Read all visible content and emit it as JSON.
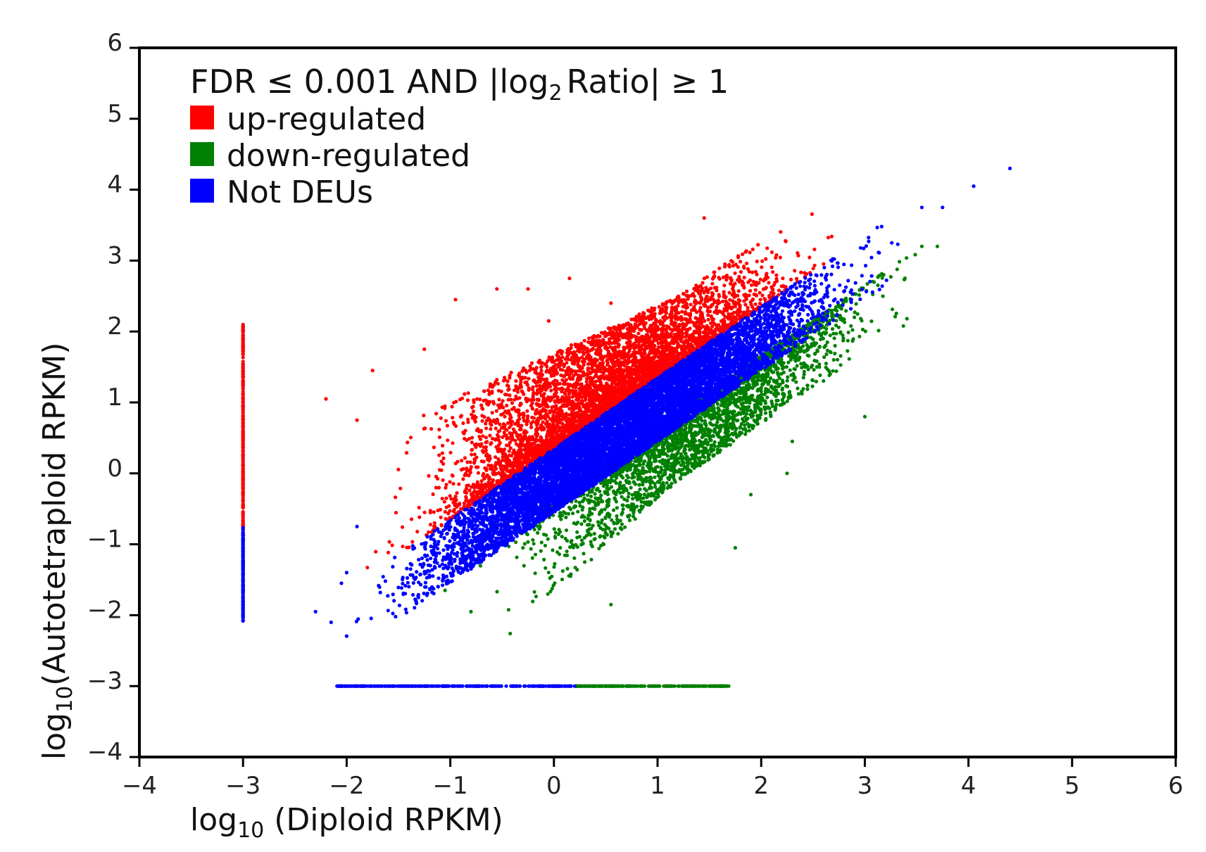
{
  "chart_data": {
    "type": "scatter",
    "title": "",
    "xlabel": {
      "prefix": "log",
      "sub": "10",
      "text": " (Diploid RPKM)"
    },
    "ylabel": {
      "prefix": "log",
      "sub": "10",
      "text": "(Autotetraploid RPKM)"
    },
    "xlim": [
      -4,
      6
    ],
    "ylim": [
      -4,
      6
    ],
    "xticks": [
      "-4",
      "-3",
      "-2",
      "-1",
      "0",
      "1",
      "2",
      "3",
      "4",
      "5",
      "6"
    ],
    "yticks": [
      "-4",
      "-3",
      "-2",
      "-1",
      "0",
      "1",
      "2",
      "3",
      "4",
      "5",
      "6"
    ],
    "grid": false,
    "legend": {
      "placement": "top-left",
      "title_a": "FDR ≤ 0.001 AND |log",
      "title_sub": "2",
      "title_b": "Ratio| ≥ 1",
      "entries": [
        {
          "name": "up-regulated",
          "color": "#ff0000"
        },
        {
          "name": "down-regulated",
          "color": "#008000"
        },
        {
          "name": "Not DEUs",
          "color": "#0000ff"
        }
      ]
    },
    "series": [
      {
        "name": "up-regulated",
        "color": "#ff0000",
        "clusters": [
          {
            "desc": "main band above diagonal",
            "x_range": [
              -1.8,
              2.8
            ],
            "y_offset_range": [
              0.35,
              1.3
            ],
            "count": 5200
          },
          {
            "desc": "vertical strip at x=-3",
            "x": -3.0,
            "y_range": [
              -0.8,
              2.1
            ],
            "count": 260
          }
        ],
        "outliers": [
          {
            "x": 1.45,
            "y": 3.6
          },
          {
            "x": 1.65,
            "y": 2.95
          },
          {
            "x": 0.15,
            "y": 2.75
          },
          {
            "x": -0.25,
            "y": 2.6
          },
          {
            "x": -0.95,
            "y": 2.45
          },
          {
            "x": 0.55,
            "y": 2.4
          },
          {
            "x": -0.55,
            "y": 2.6
          },
          {
            "x": -0.05,
            "y": 2.15
          },
          {
            "x": -1.75,
            "y": 1.45
          },
          {
            "x": -1.25,
            "y": 1.75
          },
          {
            "x": -1.9,
            "y": 0.75
          },
          {
            "x": -2.2,
            "y": 1.05
          }
        ]
      },
      {
        "name": "down-regulated",
        "color": "#008000",
        "clusters": [
          {
            "desc": "main band below diagonal",
            "x_range": [
              -0.8,
              3.6
            ],
            "y_offset_range": [
              -1.3,
              -0.35
            ],
            "count": 3600
          },
          {
            "desc": "horizontal strip at y=-3",
            "y": -3.0,
            "x_range": [
              0.2,
              1.7
            ],
            "count": 200
          }
        ],
        "outliers": [
          {
            "x": 3.55,
            "y": 3.2
          },
          {
            "x": 3.7,
            "y": 3.2
          },
          {
            "x": 2.7,
            "y": 1.6
          },
          {
            "x": 3.0,
            "y": 0.8
          },
          {
            "x": 2.3,
            "y": 0.45
          },
          {
            "x": 2.25,
            "y": 0.0
          },
          {
            "x": 1.9,
            "y": -0.3
          },
          {
            "x": 1.75,
            "y": -1.05
          },
          {
            "x": 0.55,
            "y": -1.85
          },
          {
            "x": -0.8,
            "y": -1.95
          },
          {
            "x": -1.05,
            "y": -1.65
          }
        ]
      },
      {
        "name": "Not DEUs",
        "color": "#0000ff",
        "clusters": [
          {
            "desc": "dense diagonal band y≈x",
            "x_range": [
              -2.0,
              3.4
            ],
            "y_offset_range": [
              -0.55,
              0.35
            ],
            "count": 9000
          },
          {
            "desc": "vertical strip at x=-3",
            "x": -3.0,
            "y_range": [
              -2.1,
              -0.75
            ],
            "count": 150
          },
          {
            "desc": "horizontal strip at y=-3",
            "y": -3.0,
            "x_range": [
              -2.1,
              0.2
            ],
            "count": 260
          }
        ],
        "outliers": [
          {
            "x": 4.4,
            "y": 4.3
          },
          {
            "x": 4.05,
            "y": 4.05
          },
          {
            "x": 3.75,
            "y": 3.75
          },
          {
            "x": 3.55,
            "y": 3.75
          },
          {
            "x": -2.3,
            "y": -1.95
          },
          {
            "x": -2.15,
            "y": -2.1
          },
          {
            "x": -2.05,
            "y": -1.55
          },
          {
            "x": -2.0,
            "y": -1.4
          },
          {
            "x": -1.9,
            "y": -0.75
          }
        ]
      }
    ]
  }
}
